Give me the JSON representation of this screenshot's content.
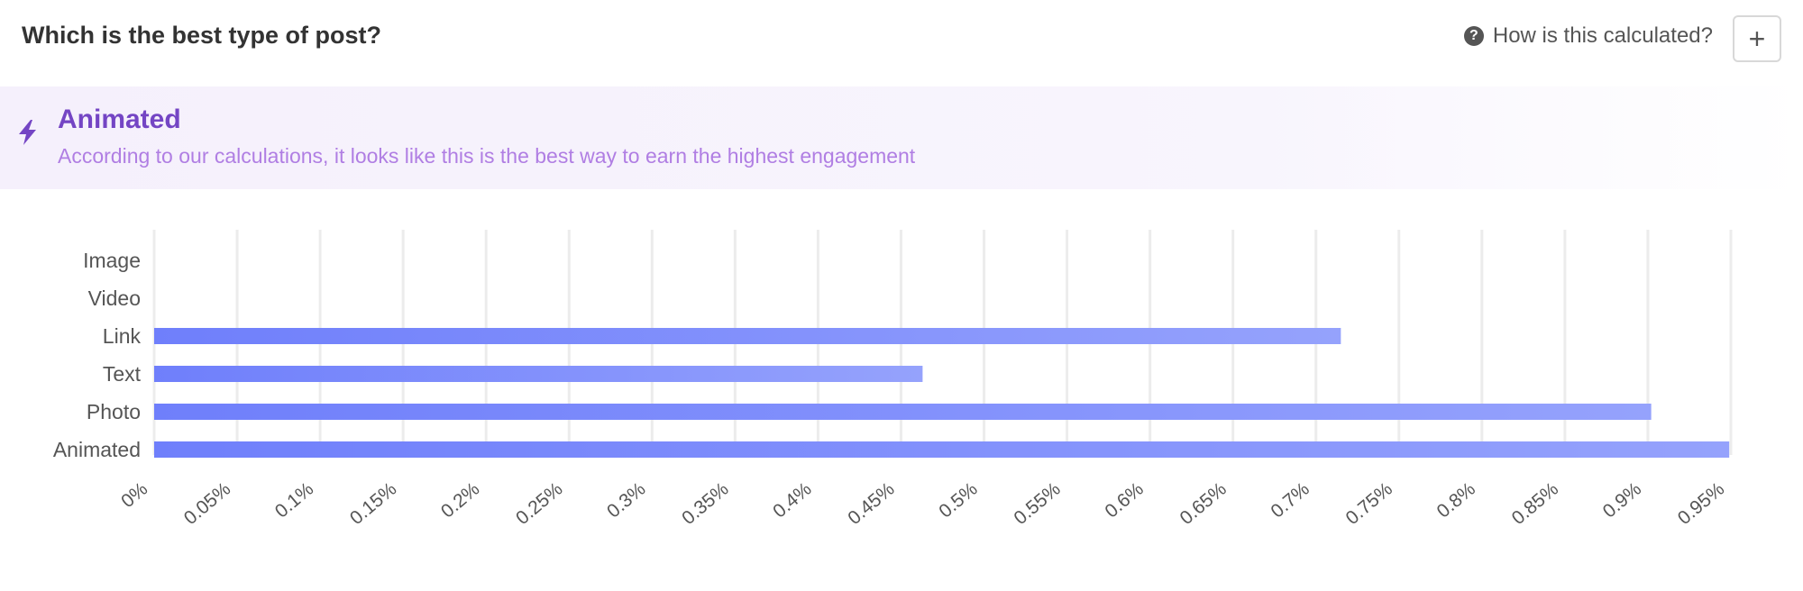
{
  "header": {
    "title": "Which is the best type of post?",
    "help_label": "How is this calculated?",
    "help_icon": "?",
    "add_label": "+"
  },
  "banner": {
    "icon": "lightning-bolt",
    "title": "Animated",
    "subtitle": "According to our calculations, it looks like this is the best way to earn the highest engagement"
  },
  "colors": {
    "bar_start": "#6f7ffb",
    "bar_end": "#95a2fc",
    "banner_title": "#7445c4",
    "banner_subtitle": "#b07ee3"
  },
  "chart_data": {
    "type": "bar",
    "orientation": "horizontal",
    "categories": [
      "Image",
      "Video",
      "Link",
      "Text",
      "Photo",
      "Animated"
    ],
    "values": [
      0,
      0,
      0.715,
      0.463,
      0.902,
      0.949
    ],
    "xlim": [
      0,
      0.95
    ],
    "xticks": [
      "0%",
      "0.05%",
      "0.1%",
      "0.15%",
      "0.2%",
      "0.25%",
      "0.3%",
      "0.35%",
      "0.4%",
      "0.45%",
      "0.5%",
      "0.55%",
      "0.6%",
      "0.65%",
      "0.7%",
      "0.75%",
      "0.8%",
      "0.85%",
      "0.9%",
      "0.95%"
    ],
    "grid": true,
    "legend": "none"
  }
}
